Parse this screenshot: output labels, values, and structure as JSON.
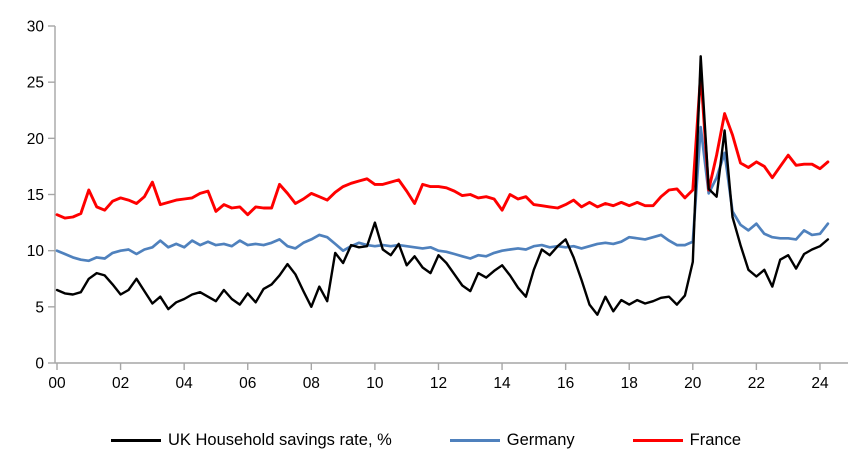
{
  "chart_data": {
    "type": "line",
    "title": "",
    "xlabel": "",
    "ylabel": "",
    "x_unit": "year, quarterly data",
    "x_start": 2000,
    "x_step": 0.25,
    "ylim": [
      0,
      30
    ],
    "y_ticks": [
      "0",
      "5",
      "10",
      "15",
      "20",
      "25",
      "30"
    ],
    "x_tick_labels": [
      "00",
      "02",
      "04",
      "06",
      "08",
      "10",
      "12",
      "14",
      "16",
      "18",
      "20",
      "22",
      "24"
    ],
    "grid": false,
    "legend_position": "bottom",
    "axis_color": "#a6a6a6",
    "tick_label_color": "#000000",
    "series": [
      {
        "name": "Germany",
        "color": "#4f81bd",
        "stroke_width": 2.7,
        "values": [
          10.0,
          9.7,
          9.4,
          9.2,
          9.1,
          9.4,
          9.3,
          9.8,
          10.0,
          10.1,
          9.7,
          10.1,
          10.3,
          10.9,
          10.3,
          10.6,
          10.3,
          10.9,
          10.5,
          10.8,
          10.5,
          10.6,
          10.4,
          10.9,
          10.5,
          10.6,
          10.5,
          10.7,
          11.0,
          10.4,
          10.2,
          10.7,
          11.0,
          11.4,
          11.2,
          10.6,
          10.0,
          10.4,
          10.7,
          10.5,
          10.4,
          10.5,
          10.4,
          10.5,
          10.4,
          10.3,
          10.2,
          10.3,
          10.0,
          9.9,
          9.7,
          9.5,
          9.3,
          9.6,
          9.5,
          9.8,
          10.0,
          10.1,
          10.2,
          10.1,
          10.4,
          10.5,
          10.3,
          10.4,
          10.3,
          10.4,
          10.2,
          10.4,
          10.6,
          10.7,
          10.6,
          10.8,
          11.2,
          11.1,
          11.0,
          11.2,
          11.4,
          10.9,
          10.5,
          10.5,
          10.8,
          21.0,
          15.1,
          16.5,
          18.7,
          13.5,
          12.3,
          11.8,
          12.4,
          11.5,
          11.2,
          11.1,
          11.1,
          11.0,
          11.8,
          11.4,
          11.5,
          12.4
        ]
      },
      {
        "name": "France",
        "color": "#ff0000",
        "stroke_width": 2.9,
        "values": [
          13.2,
          12.9,
          13.0,
          13.3,
          15.4,
          13.9,
          13.6,
          14.4,
          14.7,
          14.5,
          14.2,
          14.8,
          16.1,
          14.1,
          14.3,
          14.5,
          14.6,
          14.7,
          15.1,
          15.3,
          13.5,
          14.1,
          13.8,
          13.9,
          13.2,
          13.9,
          13.8,
          13.8,
          15.9,
          15.1,
          14.2,
          14.6,
          15.1,
          14.8,
          14.5,
          15.2,
          15.7,
          16.0,
          16.2,
          16.4,
          15.9,
          15.9,
          16.1,
          16.3,
          15.3,
          14.2,
          15.9,
          15.7,
          15.7,
          15.6,
          15.3,
          14.9,
          15.0,
          14.7,
          14.8,
          14.6,
          13.6,
          15.0,
          14.6,
          14.8,
          14.1,
          14.0,
          13.9,
          13.8,
          14.1,
          14.5,
          13.9,
          14.3,
          13.9,
          14.2,
          14.0,
          14.3,
          14.0,
          14.3,
          14.0,
          14.0,
          14.8,
          15.4,
          15.5,
          14.7,
          15.4,
          25.8,
          15.4,
          18.5,
          22.2,
          20.3,
          17.8,
          17.4,
          17.9,
          17.5,
          16.5,
          17.5,
          18.5,
          17.6,
          17.7,
          17.7,
          17.3,
          17.9
        ]
      },
      {
        "name": "UK Household savings rate, %",
        "color": "#000000",
        "stroke_width": 2.4,
        "values": [
          6.5,
          6.2,
          6.1,
          6.3,
          7.5,
          8.0,
          7.8,
          7.0,
          6.1,
          6.5,
          7.5,
          6.4,
          5.3,
          5.9,
          4.8,
          5.4,
          5.7,
          6.1,
          6.3,
          5.9,
          5.5,
          6.5,
          5.7,
          5.2,
          6.2,
          5.4,
          6.6,
          7.0,
          7.8,
          8.8,
          7.9,
          6.4,
          5.0,
          6.8,
          5.5,
          9.8,
          8.9,
          10.5,
          10.3,
          10.4,
          12.5,
          10.1,
          9.6,
          10.6,
          8.7,
          9.5,
          8.5,
          8.0,
          9.6,
          8.9,
          7.9,
          6.9,
          6.4,
          8.0,
          7.6,
          8.2,
          8.7,
          7.8,
          6.7,
          5.9,
          8.3,
          10.1,
          9.6,
          10.4,
          11.0,
          9.4,
          7.4,
          5.2,
          4.3,
          5.9,
          4.6,
          5.6,
          5.2,
          5.6,
          5.3,
          5.5,
          5.8,
          5.9,
          5.2,
          6.0,
          9.0,
          27.3,
          15.5,
          14.8,
          20.7,
          13.0,
          10.5,
          8.3,
          7.7,
          8.3,
          6.8,
          9.2,
          9.6,
          8.4,
          9.7,
          10.1,
          10.4,
          11.0
        ]
      }
    ],
    "legend_order": [
      2,
      0,
      1
    ]
  }
}
